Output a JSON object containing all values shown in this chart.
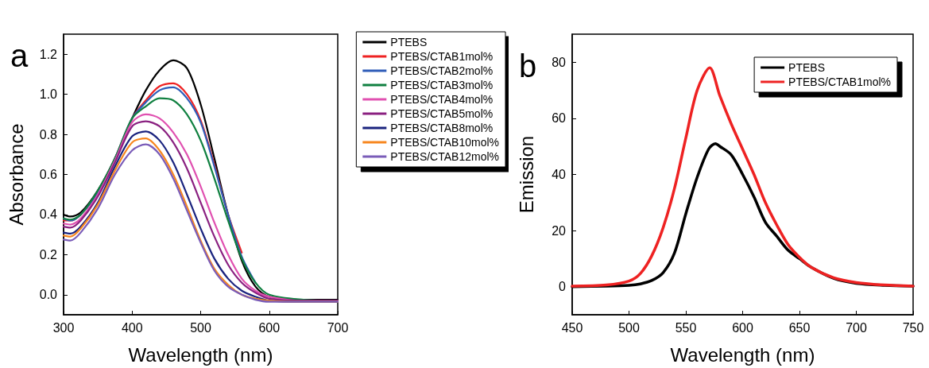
{
  "chart_data": [
    {
      "type": "line",
      "title": "a",
      "xlabel": "Wavelength (nm)",
      "ylabel": "Absorbance",
      "x": [
        300,
        310,
        325,
        350,
        375,
        400,
        420,
        440,
        460,
        480,
        500,
        520,
        540,
        560,
        580,
        600,
        650,
        700
      ],
      "xlim": [
        300,
        700
      ],
      "xticks": [
        300,
        400,
        500,
        600,
        700
      ],
      "ylim": [
        -0.1,
        1.3
      ],
      "yticks": [
        {
          "value": 0,
          "label": "0.0"
        },
        {
          "value": 0.2,
          "label": "0.2"
        },
        {
          "value": 0.4,
          "label": "0.4"
        },
        {
          "value": 0.6,
          "label": "0.6"
        },
        {
          "value": 0.8,
          "label": "0.8"
        },
        {
          "value": 1.0,
          "label": "1.0"
        },
        {
          "value": 1.2,
          "label": "1.2"
        }
      ],
      "grid": false,
      "legend": "right",
      "marker": "none",
      "line_style": "solid",
      "series": [
        {
          "name": "PTEBS",
          "color": "#000000",
          "values": [
            0.4,
            0.39,
            0.41,
            0.52,
            0.68,
            0.88,
            1.02,
            1.12,
            1.17,
            1.13,
            0.95,
            0.68,
            0.4,
            0.17,
            0.04,
            -0.01,
            -0.025,
            -0.025
          ]
        },
        {
          "name": "PTEBS/CTAB1mol%",
          "color": "#ee2222",
          "values": [
            0.37,
            0.37,
            0.4,
            0.51,
            0.68,
            0.88,
            0.97,
            1.04,
            1.055,
            1.0,
            0.87,
            0.65,
            0.4,
            0.21,
            null,
            null,
            null,
            null
          ]
        },
        {
          "name": "PTEBS/CTAB2mol%",
          "color": "#2e5cb8",
          "values": [
            0.38,
            0.37,
            0.4,
            0.51,
            0.68,
            0.88,
            0.96,
            1.02,
            1.035,
            0.98,
            0.86,
            0.64,
            0.4,
            0.19,
            0.06,
            null,
            null,
            null
          ]
        },
        {
          "name": "PTEBS/CTAB3mol%",
          "color": "#108040",
          "values": [
            0.38,
            0.375,
            0.4,
            0.52,
            0.68,
            0.88,
            0.94,
            0.98,
            0.97,
            0.9,
            0.77,
            0.58,
            0.37,
            0.18,
            0.06,
            0.0,
            -0.025,
            -0.03
          ]
        },
        {
          "name": "PTEBS/CTAB4mol%",
          "color": "#e050b0",
          "values": [
            0.355,
            0.35,
            0.38,
            0.5,
            0.67,
            0.86,
            0.9,
            0.88,
            0.81,
            0.7,
            0.54,
            0.36,
            0.2,
            0.08,
            0.02,
            -0.01,
            -0.03,
            -0.03
          ]
        },
        {
          "name": "PTEBS/CTAB5mol%",
          "color": "#8a2080",
          "values": [
            0.34,
            0.335,
            0.37,
            0.49,
            0.66,
            0.84,
            0.865,
            0.84,
            0.76,
            0.63,
            0.46,
            0.29,
            0.15,
            0.06,
            0.01,
            -0.02,
            -0.03,
            -0.03
          ]
        },
        {
          "name": "PTEBS/CTAB8mol%",
          "color": "#1a237e",
          "values": [
            0.31,
            0.305,
            0.34,
            0.46,
            0.64,
            0.79,
            0.815,
            0.77,
            0.66,
            0.5,
            0.33,
            0.18,
            0.08,
            0.02,
            -0.01,
            -0.03,
            -0.035,
            -0.035
          ]
        },
        {
          "name": "PTEBS/CTAB10mol%",
          "color": "#f7861e",
          "values": [
            0.295,
            0.29,
            0.33,
            0.45,
            0.62,
            0.76,
            0.78,
            0.72,
            0.6,
            0.44,
            0.27,
            0.13,
            0.05,
            0.0,
            -0.02,
            -0.03,
            -0.035,
            -0.035
          ]
        },
        {
          "name": "PTEBS/CTAB12mol%",
          "color": "#7a5cb8",
          "values": [
            0.275,
            0.27,
            0.31,
            0.43,
            0.6,
            0.72,
            0.75,
            0.7,
            0.58,
            0.42,
            0.26,
            0.12,
            0.04,
            0.0,
            -0.025,
            -0.035,
            -0.035,
            -0.035
          ]
        }
      ]
    },
    {
      "type": "line",
      "title": "b",
      "xlabel": "Wavelength (nm)",
      "ylabel": "Emission",
      "xlim": [
        450,
        750
      ],
      "xticks": [
        450,
        500,
        550,
        600,
        650,
        700,
        750
      ],
      "ylim": [
        -10,
        90
      ],
      "yticks": [
        0,
        20,
        40,
        60,
        80
      ],
      "grid": false,
      "legend": "top right",
      "marker": "none",
      "line_style": "solid",
      "series": [
        {
          "name": "PTEBS",
          "color": "#000000",
          "x": [
            450,
            480,
            500,
            510,
            520,
            530,
            540,
            550,
            560,
            570,
            576,
            580,
            590,
            600,
            610,
            620,
            630,
            640,
            650,
            660,
            680,
            700,
            725,
            750
          ],
          "values": [
            0,
            0.2,
            0.5,
            1,
            2.2,
            5,
            12,
            26,
            39,
            49,
            51,
            50,
            47,
            40,
            32,
            23,
            18,
            13,
            10,
            7,
            3,
            1.2,
            0.5,
            0.2
          ]
        },
        {
          "name": "PTEBS/CTAB1mol%",
          "color": "#ee2222",
          "x": [
            450,
            480,
            500,
            510,
            520,
            530,
            540,
            550,
            560,
            571,
            580,
            590,
            600,
            610,
            620,
            630,
            640,
            650,
            660,
            680,
            700,
            725,
            750
          ],
          "values": [
            0.2,
            0.6,
            2,
            4.7,
            11,
            21,
            35,
            53,
            70,
            78,
            68,
            58,
            49,
            40,
            30,
            22,
            15,
            10.5,
            7,
            3.2,
            1.5,
            0.6,
            0.2
          ]
        }
      ]
    }
  ]
}
